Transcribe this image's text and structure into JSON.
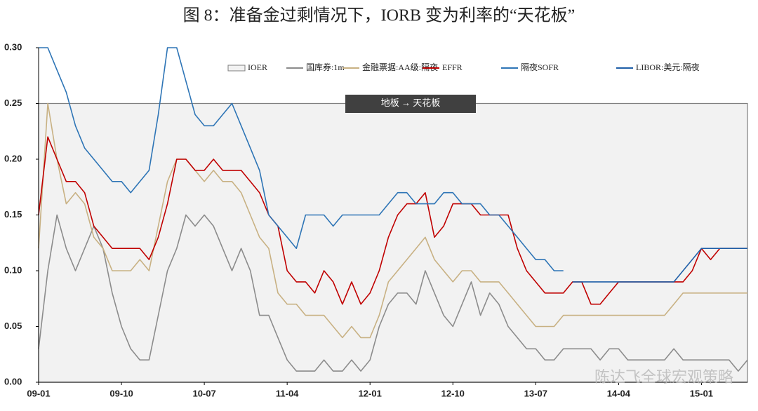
{
  "chart_data": {
    "type": "line",
    "title": "图 8：准备金过剩情况下，IORB 变为利率的“天花板”",
    "annotation": "地板 → 天花板",
    "watermark": "陈达飞全球宏观策略",
    "categories": [
      "09-01",
      null,
      null,
      null,
      null,
      null,
      null,
      null,
      null,
      "09-10",
      null,
      null,
      null,
      null,
      null,
      null,
      null,
      null,
      "10-07",
      null,
      null,
      null,
      null,
      null,
      null,
      null,
      null,
      "11-04",
      null,
      null,
      null,
      null,
      null,
      null,
      null,
      null,
      "12-01",
      null,
      null,
      null,
      null,
      null,
      null,
      null,
      null,
      "12-10",
      null,
      null,
      null,
      null,
      null,
      null,
      null,
      null,
      "13-07",
      null,
      null,
      null,
      null,
      null,
      null,
      null,
      null,
      "14-04",
      null,
      null,
      null,
      null,
      null,
      null,
      null,
      null,
      "15-01",
      null,
      null,
      null,
      null,
      null
    ],
    "ylim": [
      0,
      0.3
    ],
    "yticks": [
      {
        "value": 0,
        "label": "0.00"
      },
      0.05,
      {
        "value": 0.1,
        "label": "0.10"
      },
      0.15,
      {
        "value": 0.2,
        "label": "0.20"
      },
      0.25,
      {
        "value": 0.3,
        "label": "0.30"
      }
    ],
    "grid": false,
    "legend": "top",
    "series": [
      {
        "name": "IOER",
        "color": "#7f7f7f",
        "fill": "#f2f2f2",
        "area": true,
        "values": [
          0.25,
          0.25,
          0.25,
          0.25,
          0.25,
          0.25,
          0.25,
          0.25,
          0.25,
          0.25,
          0.25,
          0.25,
          0.25,
          0.25,
          0.25,
          0.25,
          0.25,
          0.25,
          0.25,
          0.25,
          0.25,
          0.25,
          0.25,
          0.25,
          0.25,
          0.25,
          0.25,
          0.25,
          0.25,
          0.25,
          0.25,
          0.25,
          0.25,
          0.25,
          0.25,
          0.25,
          0.25,
          0.25,
          0.25,
          0.25,
          0.25,
          0.25,
          0.25,
          0.25,
          0.25,
          0.25,
          0.25,
          0.25,
          0.25,
          0.25,
          0.25,
          0.25,
          0.25,
          0.25,
          0.25,
          0.25,
          0.25,
          0.25,
          0.25,
          0.25,
          0.25,
          0.25,
          0.25,
          0.25,
          0.25,
          0.25,
          0.25,
          0.25,
          0.25,
          0.25,
          0.25,
          0.25,
          0.25,
          0.25,
          0.25,
          0.25,
          0.25,
          0.25
        ]
      },
      {
        "name": "国库券:1m",
        "color": "#8c8c8c",
        "values": [
          0.03,
          0.1,
          0.15,
          0.12,
          0.1,
          0.12,
          0.14,
          0.12,
          0.08,
          0.05,
          0.03,
          0.02,
          0.02,
          0.06,
          0.1,
          0.12,
          0.15,
          0.14,
          0.15,
          0.14,
          0.12,
          0.1,
          0.12,
          0.1,
          0.06,
          0.06,
          0.04,
          0.02,
          0.01,
          0.01,
          0.01,
          0.02,
          0.01,
          0.01,
          0.02,
          0.01,
          0.02,
          0.05,
          0.07,
          0.08,
          0.08,
          0.07,
          0.1,
          0.08,
          0.06,
          0.05,
          0.07,
          0.09,
          0.06,
          0.08,
          0.07,
          0.05,
          0.04,
          0.03,
          0.03,
          0.02,
          0.02,
          0.03,
          0.03,
          0.03,
          0.03,
          0.02,
          0.03,
          0.03,
          0.02,
          0.02,
          0.02,
          0.02,
          0.02,
          0.03,
          0.02,
          0.02,
          0.02,
          0.02,
          0.02,
          0.02,
          0.01,
          0.02
        ]
      },
      {
        "name": "金融票据:AA级:隔夜",
        "color": "#c8b183",
        "values": [
          0.12,
          0.25,
          0.2,
          0.16,
          0.17,
          0.16,
          0.13,
          0.12,
          0.1,
          0.1,
          0.1,
          0.11,
          0.1,
          0.14,
          0.18,
          0.2,
          0.2,
          0.19,
          0.18,
          0.19,
          0.18,
          0.18,
          0.17,
          0.15,
          0.13,
          0.12,
          0.08,
          0.07,
          0.07,
          0.06,
          0.06,
          0.06,
          0.05,
          0.04,
          0.05,
          0.04,
          0.04,
          0.06,
          0.09,
          0.1,
          0.11,
          0.12,
          0.13,
          0.11,
          0.1,
          0.09,
          0.1,
          0.1,
          0.09,
          0.09,
          0.09,
          0.08,
          0.07,
          0.06,
          0.05,
          0.05,
          0.05,
          0.06,
          0.06,
          0.06,
          0.06,
          0.06,
          0.06,
          0.06,
          0.06,
          0.06,
          0.06,
          0.06,
          0.06,
          0.07,
          0.08,
          0.08,
          0.08,
          0.08,
          0.08,
          0.08,
          0.08,
          0.08
        ]
      },
      {
        "name": "EFFR",
        "color": "#c00000",
        "values": [
          0.15,
          0.22,
          0.2,
          0.18,
          0.18,
          0.17,
          0.14,
          0.13,
          0.12,
          0.12,
          0.12,
          0.12,
          0.11,
          0.13,
          0.16,
          0.2,
          0.2,
          0.19,
          0.19,
          0.2,
          0.19,
          0.19,
          0.19,
          0.18,
          0.17,
          0.15,
          0.14,
          0.1,
          0.09,
          0.09,
          0.08,
          0.1,
          0.09,
          0.07,
          0.09,
          0.07,
          0.08,
          0.1,
          0.13,
          0.15,
          0.16,
          0.16,
          0.17,
          0.13,
          0.14,
          0.16,
          0.16,
          0.16,
          0.15,
          0.15,
          0.15,
          0.15,
          0.12,
          0.1,
          0.09,
          0.08,
          0.08,
          0.08,
          0.09,
          0.09,
          0.07,
          0.07,
          0.08,
          0.09,
          0.09,
          0.09,
          0.09,
          0.09,
          0.09,
          0.09,
          0.09,
          0.1,
          0.12,
          0.11,
          0.12,
          0.12,
          0.12,
          0.12
        ]
      },
      {
        "name": "隔夜SOFR",
        "color": "#2e75b6",
        "values": [
          0.3,
          0.3,
          0.28,
          0.26,
          0.23,
          0.21,
          0.2,
          0.19,
          0.18,
          0.18,
          0.17,
          0.18,
          0.19,
          0.24,
          0.3,
          0.3,
          0.27,
          0.24,
          0.23,
          0.23,
          0.24,
          0.25,
          0.23,
          0.21,
          0.19,
          0.15,
          0.14,
          0.13,
          0.12,
          0.15,
          0.15,
          0.15,
          0.14,
          0.15,
          0.15,
          0.15,
          0.15,
          0.15,
          0.16,
          0.17,
          0.17,
          0.16,
          0.16,
          0.16,
          0.17,
          0.17,
          0.16,
          0.16,
          0.16,
          0.15,
          0.15,
          0.14,
          0.13,
          0.12,
          0.11,
          0.11,
          0.1,
          0.1,
          null,
          null,
          null,
          null,
          null,
          null,
          null,
          null,
          null,
          null,
          null,
          null,
          null,
          null,
          null,
          null,
          null,
          null,
          null,
          null
        ]
      },
      {
        "name": "LIBOR:美元:隔夜",
        "color": "#1f5fa8",
        "values": [
          null,
          null,
          null,
          null,
          null,
          null,
          null,
          null,
          null,
          null,
          null,
          null,
          null,
          null,
          null,
          null,
          null,
          null,
          null,
          null,
          null,
          null,
          null,
          null,
          null,
          null,
          null,
          null,
          null,
          null,
          null,
          null,
          null,
          null,
          null,
          null,
          null,
          null,
          null,
          null,
          null,
          null,
          null,
          null,
          null,
          null,
          null,
          null,
          null,
          null,
          null,
          null,
          null,
          null,
          null,
          null,
          null,
          null,
          0.09,
          0.09,
          0.09,
          0.09,
          0.09,
          0.09,
          0.09,
          0.09,
          0.09,
          0.09,
          0.09,
          0.09,
          0.1,
          0.11,
          0.12,
          0.12,
          0.12,
          0.12,
          0.12,
          0.12
        ]
      }
    ]
  }
}
